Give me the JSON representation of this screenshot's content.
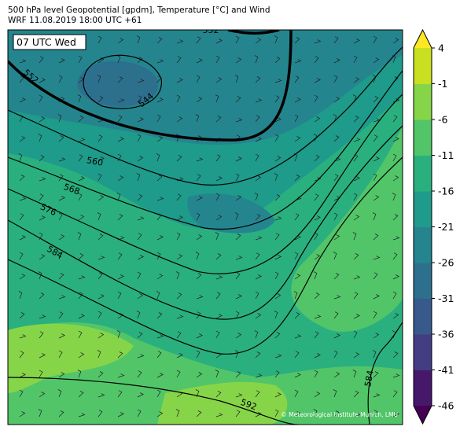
{
  "header": {
    "line1": "500 hPa level Geopotential [gpdm], Temperature [°C] and Wind",
    "line2": "WRF 11.08.2019 18:00 UTC +61"
  },
  "time_label": "07 UTC Wed",
  "contour_labels": [
    "552",
    "552",
    "544",
    "560",
    "568",
    "576",
    "584",
    "592",
    "584"
  ],
  "copyright": "© Meteorological Institute Munich, LMU",
  "colorbar": {
    "lim": [
      -46,
      4
    ],
    "ticks": [
      4,
      -1,
      -6,
      -11,
      -16,
      -21,
      -26,
      -31,
      -36,
      -41,
      -46
    ],
    "colors": [
      "#46186b",
      "#433d84",
      "#38598c",
      "#2d708e",
      "#25858e",
      "#1e9b8a",
      "#2ab07f",
      "#52c569",
      "#86d549",
      "#c8df22"
    ],
    "under_color": "#440154",
    "over_color": "#fde725"
  }
}
